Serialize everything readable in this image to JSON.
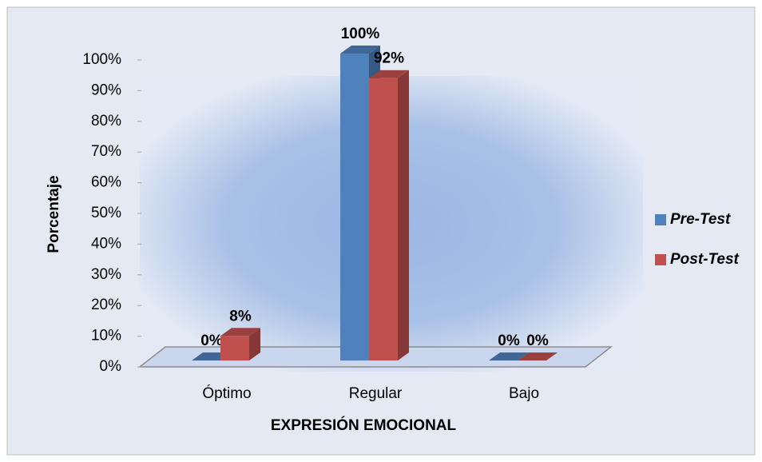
{
  "chart_data": {
    "type": "bar",
    "categories": [
      "Óptimo",
      "Regular",
      "Bajo"
    ],
    "series": [
      {
        "name": "Pre-Test",
        "color": "#4f81bd",
        "values": [
          0,
          100,
          0
        ],
        "value_labels": [
          "0%",
          "100%",
          "0%"
        ]
      },
      {
        "name": "Post-Test",
        "color": "#c0504d",
        "values": [
          8,
          92,
          0
        ],
        "value_labels": [
          "8%",
          "92%",
          "0%"
        ]
      }
    ],
    "ylim": [
      0,
      100
    ],
    "yticks": [
      {
        "value": 0,
        "label": "0%"
      },
      {
        "value": 10,
        "label": "10%"
      },
      {
        "value": 20,
        "label": "20%"
      },
      {
        "value": 30,
        "label": "30%"
      },
      {
        "value": 40,
        "label": "40%"
      },
      {
        "value": 50,
        "label": "50%"
      },
      {
        "value": 60,
        "label": "60%"
      },
      {
        "value": 70,
        "label": "70%"
      },
      {
        "value": 80,
        "label": "80%"
      },
      {
        "value": 90,
        "label": "90%"
      },
      {
        "value": 100,
        "label": "100%"
      }
    ],
    "y_label": "Porcentaje",
    "x_label": "EXPRESIÓN EMOCIONAL",
    "legend": "right",
    "grid": false
  }
}
